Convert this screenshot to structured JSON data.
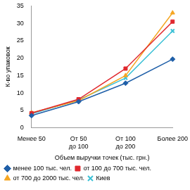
{
  "chart_data": {
    "type": "line",
    "x_label": "Объем выручки точек (тыс. грн.)",
    "y_label": "К-во упаковок",
    "categories": [
      "Менее 50",
      "От 50 до 100",
      "От 100 до 200",
      "Более 200"
    ],
    "series": [
      {
        "name": "менее 100 тыс. чел.",
        "color": "#1f5fa8",
        "marker": "diamond",
        "values": [
          3.5,
          7.5,
          12.8,
          19.7
        ]
      },
      {
        "name": "от 100 до 700 тыс. чел.",
        "color": "#e0282e",
        "marker": "square",
        "values": [
          4.2,
          8.2,
          17,
          30.5
        ]
      },
      {
        "name": "от 700 до 2000 тыс. чел.",
        "color": "#f5a623",
        "marker": "triangle",
        "values": [
          4.3,
          7.8,
          15,
          33
        ]
      },
      {
        "name": "Киев",
        "color": "#3cc1d6",
        "marker": "x",
        "values": [
          4,
          8,
          14.3,
          27.8
        ]
      }
    ],
    "ylim": [
      0,
      35
    ],
    "yticks": [
      0,
      5,
      10,
      15,
      20,
      25,
      30,
      35
    ],
    "grid": false,
    "legend": "bottom"
  }
}
